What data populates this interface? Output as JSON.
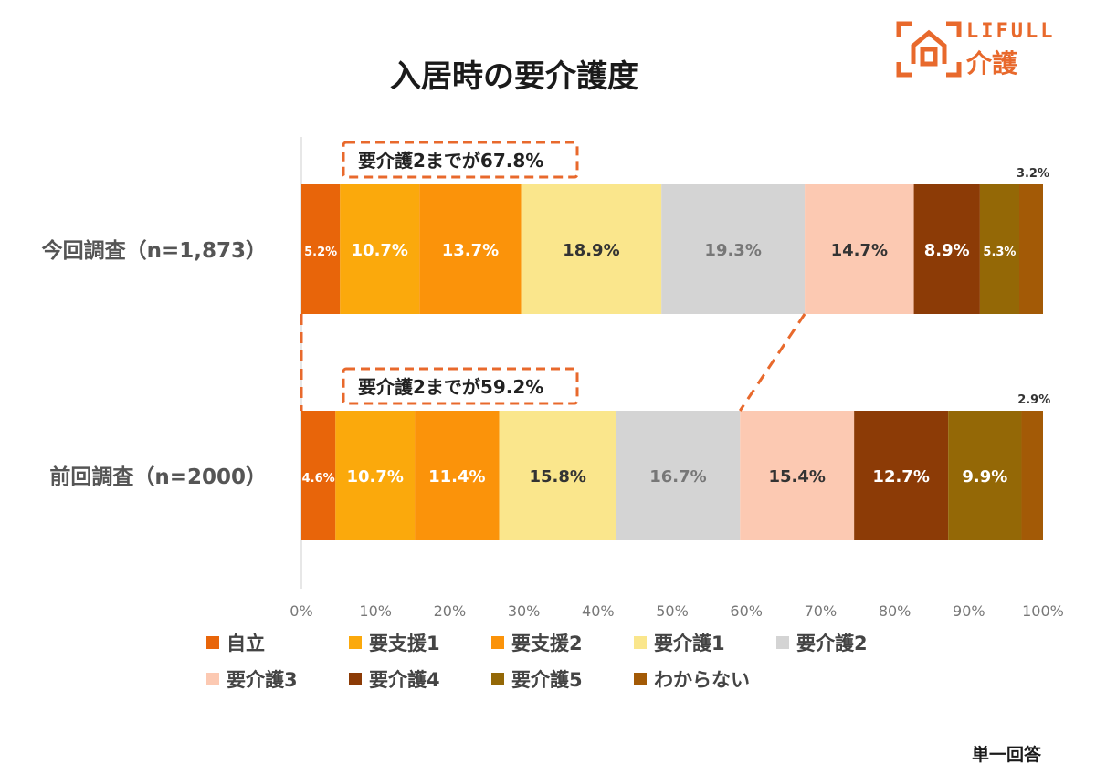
{
  "title": "入居時の要介護度",
  "logo": {
    "brand": "LIFULL",
    "sub": "介護"
  },
  "footnote": "単一回答",
  "annotations": [
    "要介護2までが67.8%",
    "要介護2までが59.2%"
  ],
  "colors": {
    "自立": "#e8650a",
    "要支援1": "#fba90c",
    "要支援2": "#fb930a",
    "要介護1": "#fae68c",
    "要介護2": "#d4d4d4",
    "要介護3": "#fcc9b2",
    "要介護4": "#8c3b06",
    "要介護5": "#946806",
    "わからない": "#a35a06",
    "accent": "#e8692c"
  },
  "chart_data": {
    "type": "bar",
    "orientation": "horizontal",
    "stacked": true,
    "title": "入居時の要介護度",
    "categories": [
      "今回調査（n=1,873）",
      "前回調査（n=2000）"
    ],
    "xlim": [
      0,
      100
    ],
    "xticks": [
      "0%",
      "10%",
      "20%",
      "30%",
      "40%",
      "50%",
      "60%",
      "70%",
      "80%",
      "90%",
      "100%"
    ],
    "series": [
      {
        "name": "自立",
        "values": [
          5.2,
          4.6
        ],
        "labels": [
          "5.2%",
          "4.6%"
        ]
      },
      {
        "name": "要支援1",
        "values": [
          10.7,
          10.7
        ],
        "labels": [
          "10.7%",
          "10.7%"
        ]
      },
      {
        "name": "要支援2",
        "values": [
          13.7,
          11.4
        ],
        "labels": [
          "13.7%",
          "11.4%"
        ]
      },
      {
        "name": "要介護1",
        "values": [
          18.9,
          15.8
        ],
        "labels": [
          "18.9%",
          "15.8%"
        ]
      },
      {
        "name": "要介護2",
        "values": [
          19.3,
          16.7
        ],
        "labels": [
          "19.3%",
          "16.7%"
        ]
      },
      {
        "name": "要介護3",
        "values": [
          14.7,
          15.4
        ],
        "labels": [
          "14.7%",
          "15.4%"
        ]
      },
      {
        "name": "要介護4",
        "values": [
          8.9,
          12.7
        ],
        "labels": [
          "8.9%",
          "12.7%"
        ]
      },
      {
        "name": "要介護5",
        "values": [
          5.3,
          9.9
        ],
        "labels": [
          "5.3%",
          "9.9%"
        ]
      },
      {
        "name": "わからない",
        "values": [
          3.2,
          2.9
        ],
        "labels": [
          "3.2%",
          "2.9%"
        ]
      }
    ],
    "legend": [
      "自立",
      "要支援1",
      "要支援2",
      "要介護1",
      "要介護2",
      "要介護3",
      "要介護4",
      "要介護5",
      "わからない"
    ],
    "legend_position": "bottom"
  }
}
